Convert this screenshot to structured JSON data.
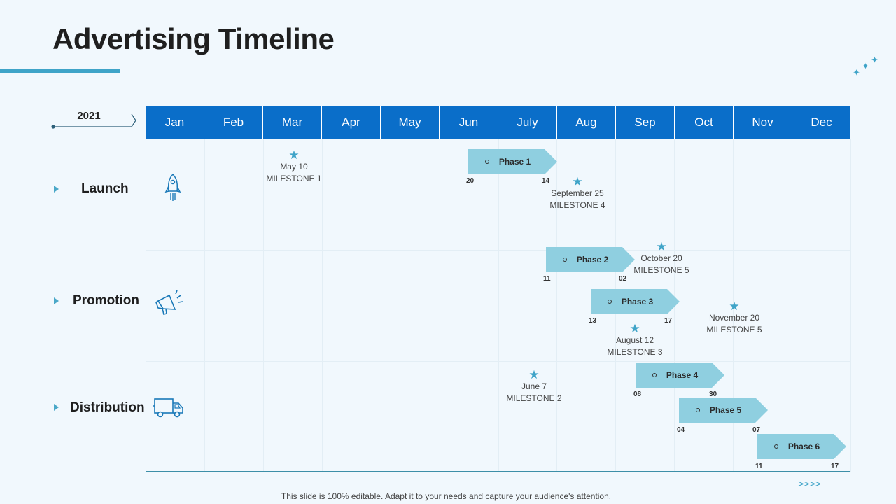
{
  "title": "Advertising Timeline",
  "year": "2021",
  "months": [
    "Jan",
    "Feb",
    "Mar",
    "Apr",
    "May",
    "Jun",
    "July",
    "Aug",
    "Sep",
    "Oct",
    "Nov",
    "Dec"
  ],
  "categories": [
    {
      "label": "Launch",
      "icon": "rocket-icon"
    },
    {
      "label": "Promotion",
      "icon": "megaphone-icon"
    },
    {
      "label": "Distribution",
      "icon": "truck-icon"
    }
  ],
  "phases": [
    {
      "label": "Phase 1",
      "start": "20",
      "end": "14"
    },
    {
      "label": "Phase 2",
      "start": "11",
      "end": "02"
    },
    {
      "label": "Phase 3",
      "start": "13",
      "end": "17"
    },
    {
      "label": "Phase 4",
      "start": "08",
      "end": "30"
    },
    {
      "label": "Phase 5",
      "start": "04",
      "end": "07"
    },
    {
      "label": "Phase 6",
      "start": "11",
      "end": "17"
    }
  ],
  "milestones": [
    {
      "date": "May 10",
      "label": "MILESTONE 1"
    },
    {
      "date": "September 25",
      "label": "MILESTONE 4"
    },
    {
      "date": "October 20",
      "label": "MILESTONE 5"
    },
    {
      "date": "November 20",
      "label": "MILESTONE 5"
    },
    {
      "date": "August 12",
      "label": "MILESTONE 3"
    },
    {
      "date": "June 7",
      "label": "MILESTONE 2"
    }
  ],
  "footer": "This slide is 100% editable. Adapt it to your needs and capture your audience's attention.",
  "chevrons": ">>>>",
  "colors": {
    "accent": "#0a6ec9",
    "phase": "#8fcfe0",
    "star": "#3fa4c8",
    "background": "#f1f8fd"
  }
}
